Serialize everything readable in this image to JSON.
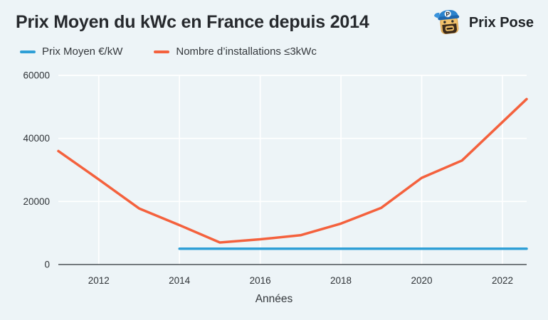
{
  "header": {
    "title": "Prix Moyen du kWc en France depuis 2014",
    "brand": "Prix Pose"
  },
  "colors": {
    "background": "#edf4f7",
    "grid": "#ffffff",
    "axis": "#4d5257",
    "tick_text": "#2f3337",
    "blue_line": "#2f9fd6",
    "orange_line": "#f4613d"
  },
  "chart_data": {
    "type": "line",
    "title": "Prix Moyen du kWc en France depuis 2014",
    "xlabel": "Années",
    "ylabel": "",
    "xlim": [
      2011,
      2022.6
    ],
    "ylim": [
      0,
      60000
    ],
    "xticks": [
      2012,
      2014,
      2016,
      2018,
      2020,
      2022
    ],
    "yticks": [
      0,
      20000,
      40000,
      60000
    ],
    "grid": true,
    "legend_position": "top-left",
    "series": [
      {
        "name": "Prix Moyen €/kW",
        "color": "#2f9fd6",
        "x": [
          2014,
          2022.6
        ],
        "y": [
          5000,
          5000
        ]
      },
      {
        "name": "Nombre d’installations ≤3kWc",
        "color": "#f4613d",
        "x": [
          2011,
          2012,
          2013,
          2014,
          2015,
          2016,
          2017,
          2018,
          2019,
          2020,
          2021,
          2022.6
        ],
        "y": [
          36000,
          27000,
          17800,
          12500,
          7000,
          8000,
          9300,
          13000,
          18000,
          27500,
          33000,
          52500
        ]
      }
    ]
  }
}
